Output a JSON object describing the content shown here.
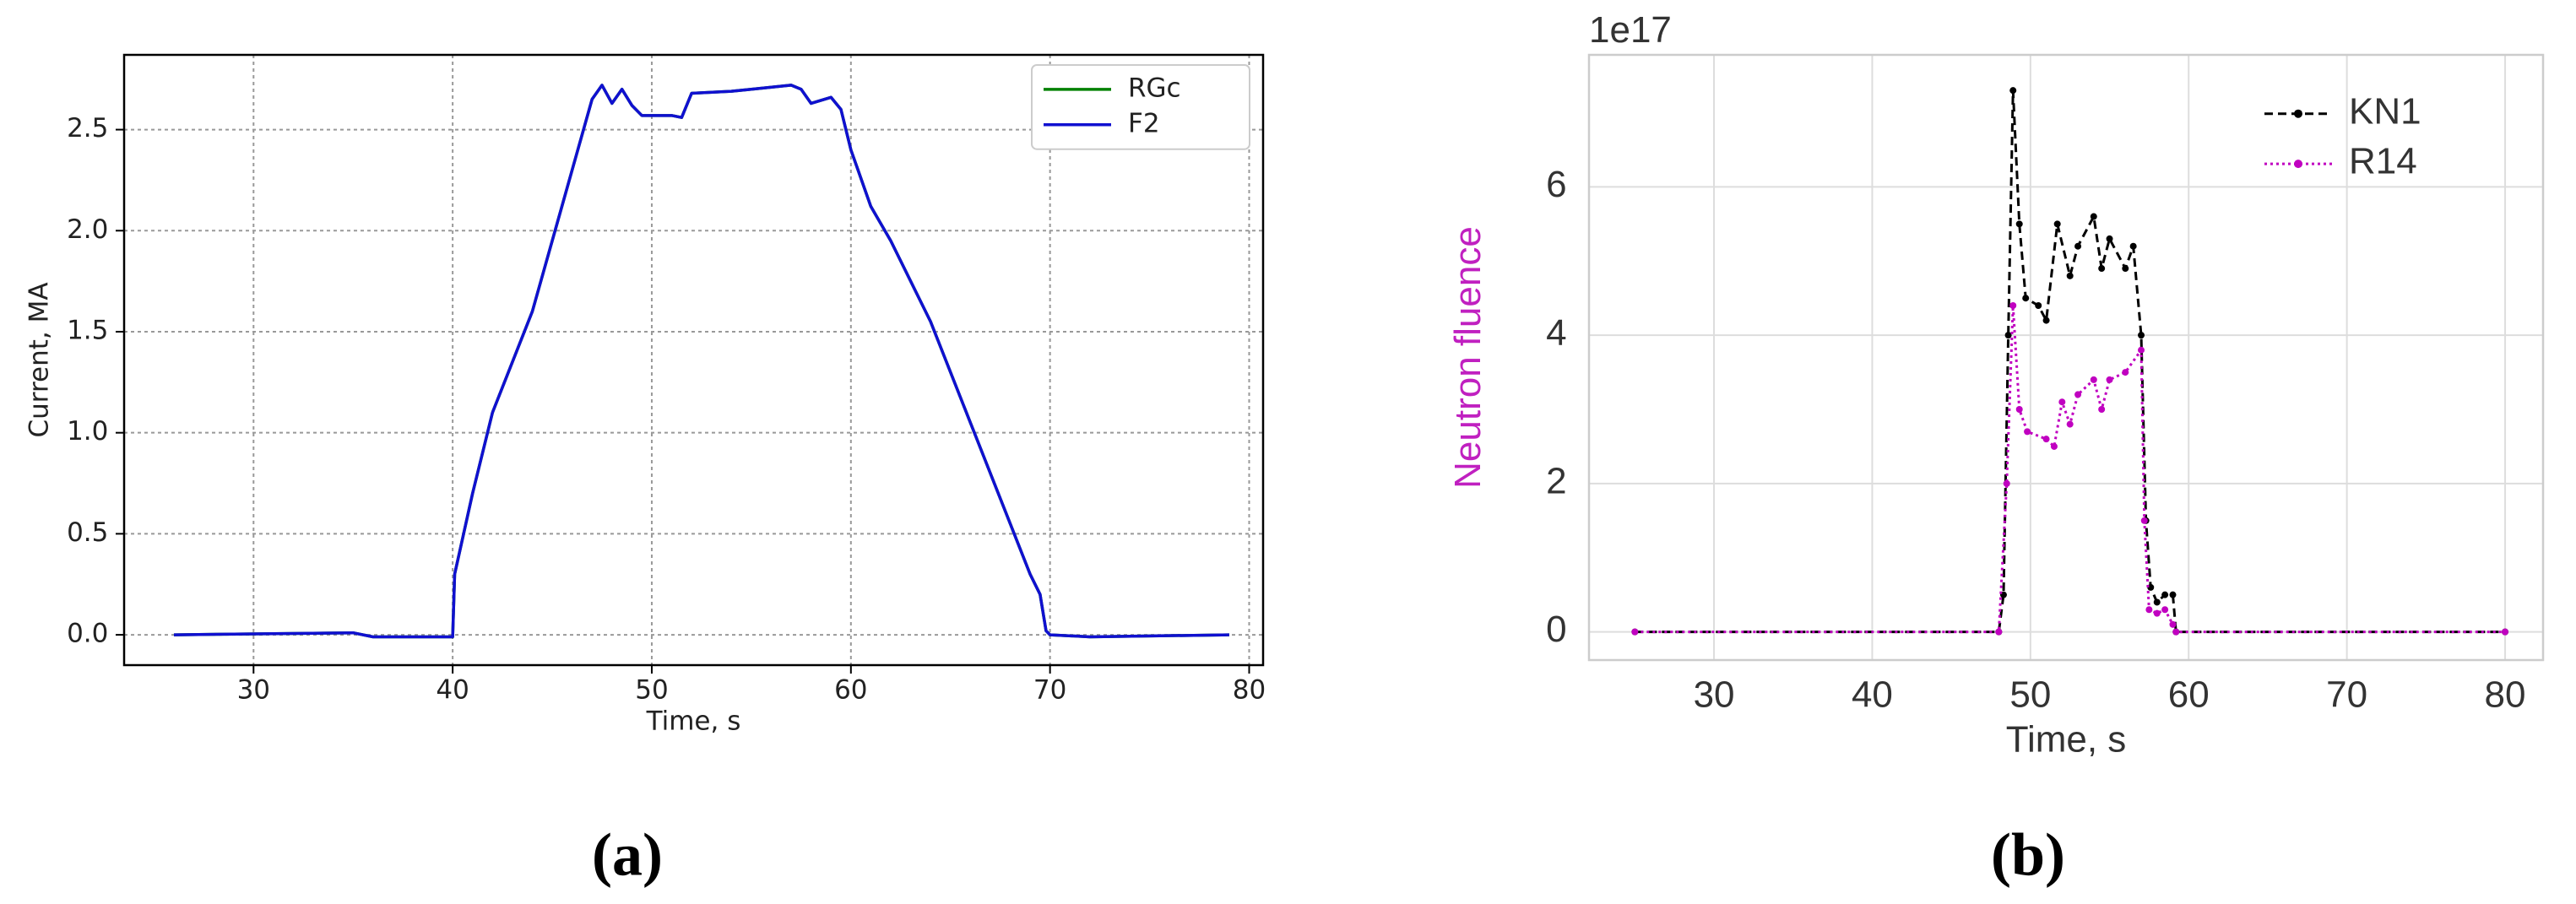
{
  "chart_data": [
    {
      "type": "line",
      "panel_label": "(a)",
      "xlabel": "Time, s",
      "ylabel": "Current, MA",
      "xlim": [
        23.5,
        80.7
      ],
      "ylim": [
        -0.15,
        2.87
      ],
      "xticks": [
        30,
        40,
        50,
        60,
        70,
        80
      ],
      "yticks": [
        {
          "value": 0,
          "label": "0.0"
        },
        0.5,
        {
          "value": 1,
          "label": "1.0"
        },
        1.5,
        {
          "value": 2,
          "label": "2.0"
        },
        2.5
      ],
      "grid": "dashed",
      "legend": "upper right",
      "legend_frame": true,
      "series": [
        {
          "name": "RGc",
          "color": "#008000",
          "linestyle": "solid",
          "x": [
            26,
            35,
            36,
            40,
            40.1,
            41,
            42,
            44,
            46,
            47,
            47.5,
            48,
            48.5,
            49,
            49.5,
            51,
            51.5,
            52,
            54,
            55,
            57,
            57.5,
            58,
            59,
            59.5,
            60,
            61,
            62,
            64,
            66,
            68,
            69,
            69.5,
            69.8,
            70,
            72,
            79
          ],
          "values": [
            0,
            0.01,
            -0.01,
            -0.01,
            0.3,
            0.7,
            1.1,
            1.6,
            2.3,
            2.65,
            2.72,
            2.63,
            2.7,
            2.62,
            2.57,
            2.57,
            2.56,
            2.68,
            2.69,
            2.7,
            2.72,
            2.7,
            2.63,
            2.66,
            2.6,
            2.4,
            2.12,
            1.95,
            1.55,
            1.05,
            0.55,
            0.3,
            0.2,
            0.02,
            0,
            -0.01,
            0
          ]
        },
        {
          "name": "F2",
          "color": "#1010d0",
          "linestyle": "solid",
          "x": [
            26,
            35,
            36,
            40,
            40.1,
            41,
            42,
            44,
            46,
            47,
            47.5,
            48,
            48.5,
            49,
            49.5,
            51,
            51.5,
            52,
            54,
            55,
            57,
            57.5,
            58,
            59,
            59.5,
            60,
            61,
            62,
            64,
            66,
            68,
            69,
            69.5,
            69.8,
            70,
            72,
            79
          ],
          "values": [
            0,
            0.01,
            -0.01,
            -0.01,
            0.3,
            0.7,
            1.1,
            1.6,
            2.3,
            2.65,
            2.72,
            2.63,
            2.7,
            2.62,
            2.57,
            2.57,
            2.56,
            2.68,
            2.69,
            2.7,
            2.72,
            2.7,
            2.63,
            2.66,
            2.6,
            2.4,
            2.12,
            1.95,
            1.55,
            1.05,
            0.55,
            0.3,
            0.2,
            0.02,
            0,
            -0.01,
            0
          ]
        }
      ]
    },
    {
      "type": "line",
      "panel_label": "(b)",
      "xlabel": "Time, s",
      "ylabel": "Neutron fluence",
      "ylabel_color": "#c020c0",
      "offset_text": "1e17",
      "xlim": [
        22.1,
        82.4
      ],
      "ylim": [
        -0.38,
        7.78
      ],
      "xticks": [
        30,
        40,
        50,
        60,
        70,
        80
      ],
      "yticks": [
        0,
        2,
        4,
        6
      ],
      "grid": "solid",
      "legend": "upper right",
      "legend_frame": false,
      "series": [
        {
          "name": "KN1",
          "color": "#000000",
          "linestyle": "dashed",
          "x": [
            25,
            48,
            48.3,
            48.6,
            48.9,
            49.3,
            49.7,
            50.5,
            51,
            51.7,
            52.5,
            53,
            54,
            54.5,
            55,
            56,
            56.5,
            57,
            57.3,
            57.6,
            58,
            58.5,
            59,
            59.2,
            80
          ],
          "values": [
            0,
            0,
            0.5,
            4,
            7.3,
            5.5,
            4.5,
            4.4,
            4.2,
            5.5,
            4.8,
            5.2,
            5.6,
            4.9,
            5.3,
            4.9,
            5.2,
            4.0,
            1.5,
            0.6,
            0.4,
            0.5,
            0.5,
            0,
            0
          ]
        },
        {
          "name": "R14",
          "color": "#c000c0",
          "linestyle": "dotted",
          "x": [
            25,
            48,
            48.5,
            48.9,
            49.3,
            49.8,
            51,
            51.5,
            52,
            52.5,
            53,
            54,
            54.5,
            55,
            56,
            57,
            57.2,
            57.5,
            58,
            58.5,
            59,
            59.2,
            80
          ],
          "values": [
            0,
            0,
            2,
            4.4,
            3.0,
            2.7,
            2.6,
            2.5,
            3.1,
            2.8,
            3.2,
            3.4,
            3.0,
            3.4,
            3.5,
            3.8,
            1.5,
            0.3,
            0.25,
            0.3,
            0.1,
            0,
            0
          ]
        }
      ]
    }
  ]
}
